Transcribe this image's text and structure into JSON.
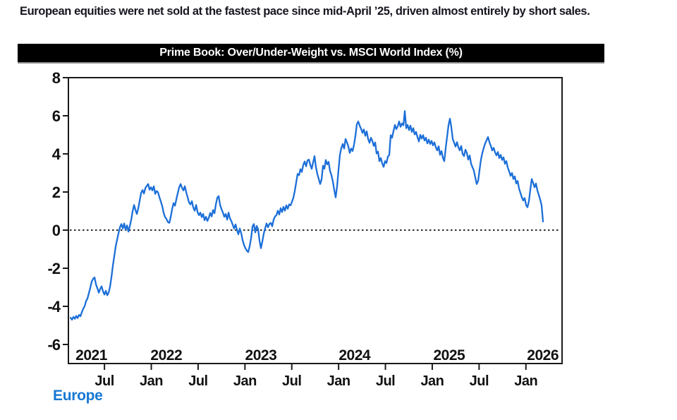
{
  "headline": "European equities were net sold at the fastest pace since mid-April ’25, driven almost entirely by short sales.",
  "chart": {
    "title": "Prime Book: Over/Under-Weight vs. MSCI World Index (%)",
    "legend_label": "Europe"
  },
  "colors": {
    "line": "#1C6FD8",
    "legend_text": "#1778D2",
    "title_bar_bg": "#000000",
    "title_bar_text": "#FFFFFF",
    "axis": "#1A1A1A",
    "headline_text": "#17151F"
  },
  "chart_data": {
    "type": "line",
    "title": "Prime Book: Over/Under-Weight vs. MSCI World Index (%)",
    "xlabel": "",
    "ylabel": "",
    "grid": false,
    "legend_position": "bottom-left",
    "xlim": [
      2021.115,
      2026.386
    ],
    "ylim": [
      -7,
      8
    ],
    "y_ticks": [
      8,
      6,
      4,
      2,
      0,
      -2,
      -4,
      -6
    ],
    "x_ticks": [
      {
        "x": 2021.5,
        "label": "Jul"
      },
      {
        "x": 2022.0,
        "label": "Jan"
      },
      {
        "x": 2022.5,
        "label": "Jul"
      },
      {
        "x": 2023.0,
        "label": "Jan"
      },
      {
        "x": 2023.5,
        "label": "Jul"
      },
      {
        "x": 2024.0,
        "label": "Jan"
      },
      {
        "x": 2024.5,
        "label": "Jul"
      },
      {
        "x": 2025.0,
        "label": "Jan"
      },
      {
        "x": 2025.5,
        "label": "Jul"
      },
      {
        "x": 2026.0,
        "label": "Jan"
      }
    ],
    "year_labels": [
      {
        "x": 2021.36,
        "label": "2021"
      },
      {
        "x": 2022.16,
        "label": "2022"
      },
      {
        "x": 2023.17,
        "label": "2023"
      },
      {
        "x": 2024.17,
        "label": "2024"
      },
      {
        "x": 2025.18,
        "label": "2025"
      },
      {
        "x": 2026.18,
        "label": "2026"
      }
    ],
    "zero_line_dashed": true,
    "series": [
      {
        "name": "Europe",
        "color": "#1C6FD8",
        "x_start": 2021.138,
        "x_end": 2026.183,
        "values": [
          -4.6,
          -4.7,
          -4.55,
          -4.65,
          -4.5,
          -4.62,
          -4.45,
          -4.52,
          -4.3,
          -4.12,
          -3.98,
          -3.72,
          -3.58,
          -3.3,
          -3.02,
          -2.7,
          -2.55,
          -2.48,
          -2.85,
          -3.05,
          -3.28,
          -3.08,
          -2.95,
          -3.22,
          -3.38,
          -3.18,
          -3.42,
          -3.28,
          -2.95,
          -2.45,
          -1.85,
          -1.35,
          -0.85,
          -0.5,
          -0.15,
          0.15,
          0.32,
          0.08,
          0.35,
          0.02,
          0.25,
          -0.08,
          0.22,
          0.55,
          1.0,
          1.32,
          1.05,
          0.85,
          1.15,
          1.55,
          1.95,
          2.1,
          1.92,
          2.2,
          2.32,
          2.42,
          2.12,
          2.25,
          2.08,
          2.3,
          1.9,
          2.05,
          1.98,
          1.72,
          1.5,
          1.25,
          0.9,
          0.68,
          0.58,
          0.42,
          0.38,
          0.7,
          1.1,
          1.42,
          1.28,
          1.62,
          1.95,
          2.25,
          2.42,
          2.22,
          2.08,
          2.3,
          1.98,
          1.72,
          1.45,
          1.35,
          1.52,
          1.18,
          1.02,
          1.32,
          0.95,
          0.78,
          0.92,
          0.68,
          0.85,
          0.52,
          0.7,
          0.48,
          0.65,
          0.9,
          0.72,
          1.05,
          0.88,
          1.35,
          1.7,
          1.78,
          1.32,
          1.1,
          0.92,
          0.7,
          0.85,
          0.55,
          0.92,
          0.62,
          0.48,
          0.28,
          0.08,
          0.3,
          0.02,
          -0.22,
          0.08,
          -0.15,
          -0.52,
          -0.78,
          -0.95,
          -1.08,
          -1.15,
          -0.85,
          -0.45,
          0.18,
          0.32,
          -0.12,
          0.22,
          0.05,
          -0.55,
          -0.95,
          -0.6,
          -0.18,
          0.1,
          0.35,
          0.15,
          0.32,
          0.38,
          0.2,
          0.55,
          0.72,
          0.78,
          1.02,
          0.82,
          1.15,
          0.95,
          1.22,
          1.02,
          1.3,
          1.12,
          1.35,
          1.3,
          1.48,
          1.7,
          2.05,
          2.5,
          2.95,
          2.88,
          3.2,
          3.05,
          3.42,
          3.6,
          3.35,
          3.65,
          3.7,
          3.42,
          3.22,
          3.55,
          3.88,
          3.3,
          2.95,
          2.68,
          2.42,
          2.65,
          3.38,
          3.22,
          3.68,
          3.45,
          3.58,
          3.1,
          2.88,
          2.55,
          2.1,
          1.72,
          2.3,
          3.15,
          3.95,
          4.3,
          4.52,
          4.28,
          4.78,
          4.6,
          4.38,
          4.05,
          4.28,
          4.15,
          4.48,
          4.95,
          5.55,
          5.7,
          5.48,
          5.32,
          5.1,
          5.28,
          4.95,
          5.18,
          4.78,
          4.58,
          4.85,
          4.68,
          4.42,
          4.6,
          4.02,
          4.12,
          3.62,
          3.78,
          3.5,
          3.32,
          3.62,
          3.52,
          3.85,
          3.95,
          4.98,
          4.85,
          5.2,
          5.52,
          5.3,
          5.45,
          5.7,
          5.42,
          5.6,
          5.5,
          6.25,
          5.35,
          5.52,
          5.25,
          5.48,
          5.15,
          5.35,
          5.02,
          5.15,
          4.88,
          4.65,
          5.0,
          4.8,
          4.98,
          4.7,
          4.85,
          4.55,
          4.75,
          4.52,
          4.68,
          4.45,
          4.6,
          4.35,
          4.18,
          4.4,
          3.95,
          4.15,
          3.8,
          3.62,
          4.3,
          4.9,
          5.5,
          5.85,
          5.4,
          4.78,
          4.58,
          4.38,
          4.62,
          4.35,
          4.18,
          4.42,
          4.0,
          3.88,
          4.22,
          4.05,
          3.7,
          3.92,
          3.48,
          3.3,
          3.12,
          2.75,
          2.42,
          2.58,
          3.15,
          3.7,
          4.05,
          4.32,
          4.55,
          4.72,
          4.88,
          4.62,
          4.42,
          4.18,
          4.32,
          4.08,
          3.92,
          4.1,
          3.78,
          3.95,
          3.68,
          3.82,
          3.48,
          3.62,
          3.28,
          3.08,
          2.85,
          3.0,
          2.68,
          2.82,
          2.45,
          2.58,
          2.18,
          1.95,
          1.72,
          1.55,
          1.68,
          1.32,
          1.2,
          1.52,
          2.12,
          2.68,
          2.48,
          2.25,
          2.45,
          2.08,
          1.85,
          1.6,
          1.3,
          0.45
        ]
      }
    ]
  }
}
